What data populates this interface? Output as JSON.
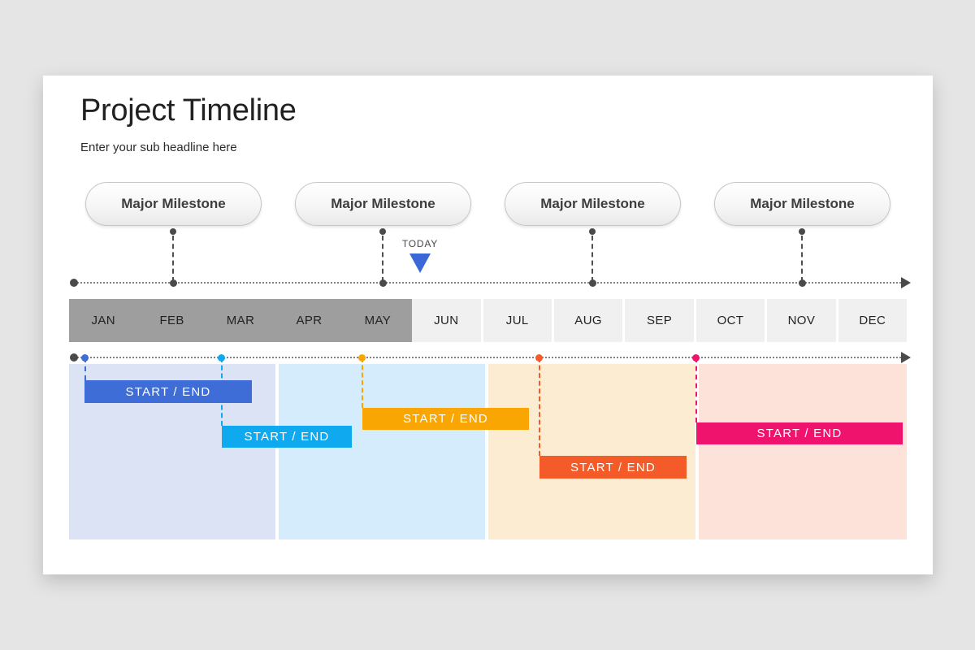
{
  "slide": {
    "title": "Project Timeline",
    "subtitle": "Enter your sub headline here"
  },
  "milestones": {
    "items": [
      {
        "label": "Major Milestone"
      },
      {
        "label": "Major Milestone"
      },
      {
        "label": "Major Milestone"
      },
      {
        "label": "Major Milestone"
      }
    ],
    "connector_color": "#4a4a4a"
  },
  "today": {
    "label": "TODAY",
    "marker_color": "#3a68d8"
  },
  "months": {
    "items": [
      "JAN",
      "FEB",
      "MAR",
      "APR",
      "MAY",
      "JUN",
      "JUL",
      "AUG",
      "SEP",
      "OCT",
      "NOV",
      "DEC"
    ],
    "highlighted": [
      "JAN",
      "FEB",
      "MAR",
      "APR",
      "MAY"
    ],
    "highlight_color": "#9e9e9e",
    "rest_color": "#f1f0f1"
  },
  "gantt": {
    "quarters": [
      {
        "months": "JAN–MAR",
        "panel_color": "#dce3f5"
      },
      {
        "months": "APR–JUN",
        "panel_color": "#d4ecfc"
      },
      {
        "months": "JUL–SEP",
        "panel_color": "#fcedd2"
      },
      {
        "months": "OCT–DEC",
        "panel_color": "#fde2d9"
      }
    ],
    "bars": [
      {
        "label": "START / END",
        "color": "#3e6dd8",
        "approx_span": "early JAN – mid MAR"
      },
      {
        "label": "START / END",
        "color": "#0fa9f0",
        "approx_span": "MAR – early MAY"
      },
      {
        "label": "START / END",
        "color": "#f9a602",
        "approx_span": "early MAY – mid JUL"
      },
      {
        "label": "START / END",
        "color": "#f45b29",
        "approx_span": "late JUL – late SEP"
      },
      {
        "label": "START / END",
        "color": "#f0136e",
        "approx_span": "OCT – end DEC"
      }
    ]
  }
}
